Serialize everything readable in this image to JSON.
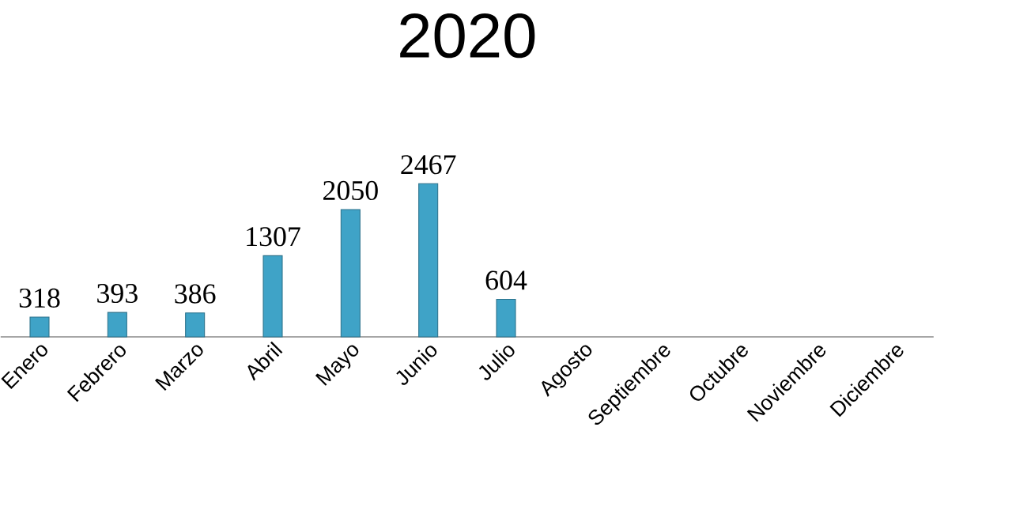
{
  "chart_data": {
    "type": "bar",
    "title": "2020",
    "categories": [
      "Enero",
      "Febrero",
      "Marzo",
      "Abril",
      "Mayo",
      "Junio",
      "Julio",
      "Agosto",
      "Septiembre",
      "Octubre",
      "Noviembre",
      "Diciembre"
    ],
    "values": [
      318,
      393,
      386,
      1307,
      2050,
      2467,
      604,
      null,
      null,
      null,
      null,
      null
    ],
    "color": "#3fa3c7",
    "data_labels": true
  }
}
